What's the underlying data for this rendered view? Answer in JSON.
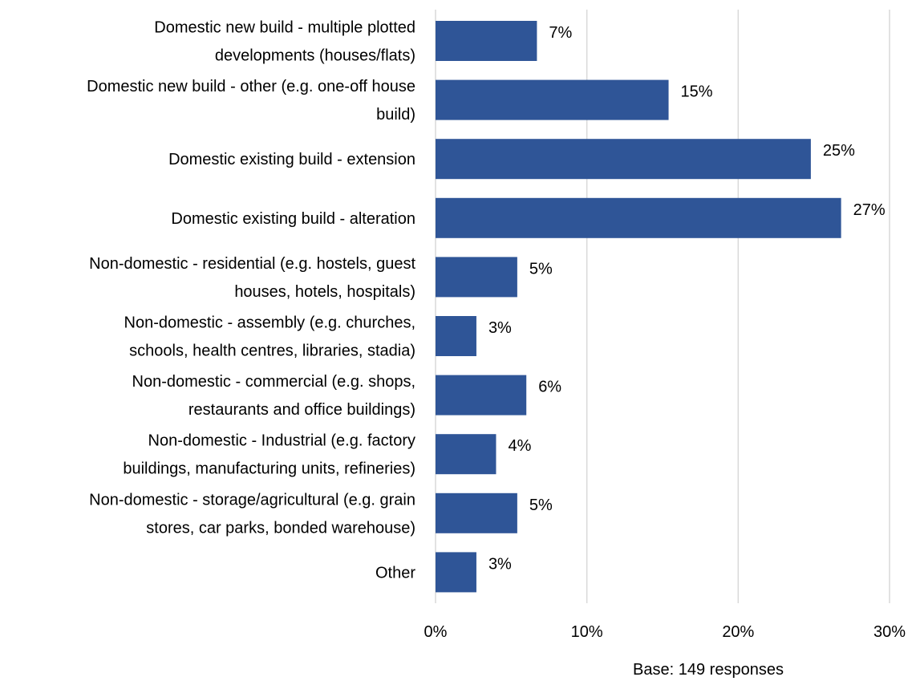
{
  "chart_data": {
    "type": "bar",
    "orientation": "horizontal",
    "categories": [
      [
        "Domestic new build - multiple plotted",
        "developments (houses/flats)"
      ],
      [
        "Domestic new build - other (e.g. one-off house",
        "build)"
      ],
      [
        "Domestic existing build - extension"
      ],
      [
        "Domestic existing build - alteration"
      ],
      [
        "Non-domestic - residential (e.g. hostels, guest",
        "houses, hotels, hospitals)"
      ],
      [
        "Non-domestic - assembly (e.g. churches,",
        "schools, health centres, libraries, stadia)"
      ],
      [
        "Non-domestic - commercial (e.g. shops,",
        "restaurants and office buildings)"
      ],
      [
        "Non-domestic - Industrial (e.g. factory",
        "buildings, manufacturing units, refineries)"
      ],
      [
        "Non-domestic - storage/agricultural (e.g. grain",
        "stores, car parks, bonded warehouse)"
      ],
      [
        "Other"
      ]
    ],
    "values": [
      6.7,
      15.4,
      24.8,
      26.8,
      5.4,
      2.7,
      6.0,
      4.0,
      5.4,
      2.7
    ],
    "data_labels": [
      "7%",
      "15%",
      "25%",
      "27%",
      "5%",
      "3%",
      "6%",
      "4%",
      "5%",
      "3%"
    ],
    "xlim": [
      0,
      30
    ],
    "x_ticks": [
      0,
      10,
      20,
      30
    ],
    "x_tick_labels": [
      "0%",
      "10%",
      "20%",
      "30%"
    ],
    "grid": true,
    "legend": "none",
    "bar_color": "#2f5597",
    "note": "Base: 149 responses"
  }
}
